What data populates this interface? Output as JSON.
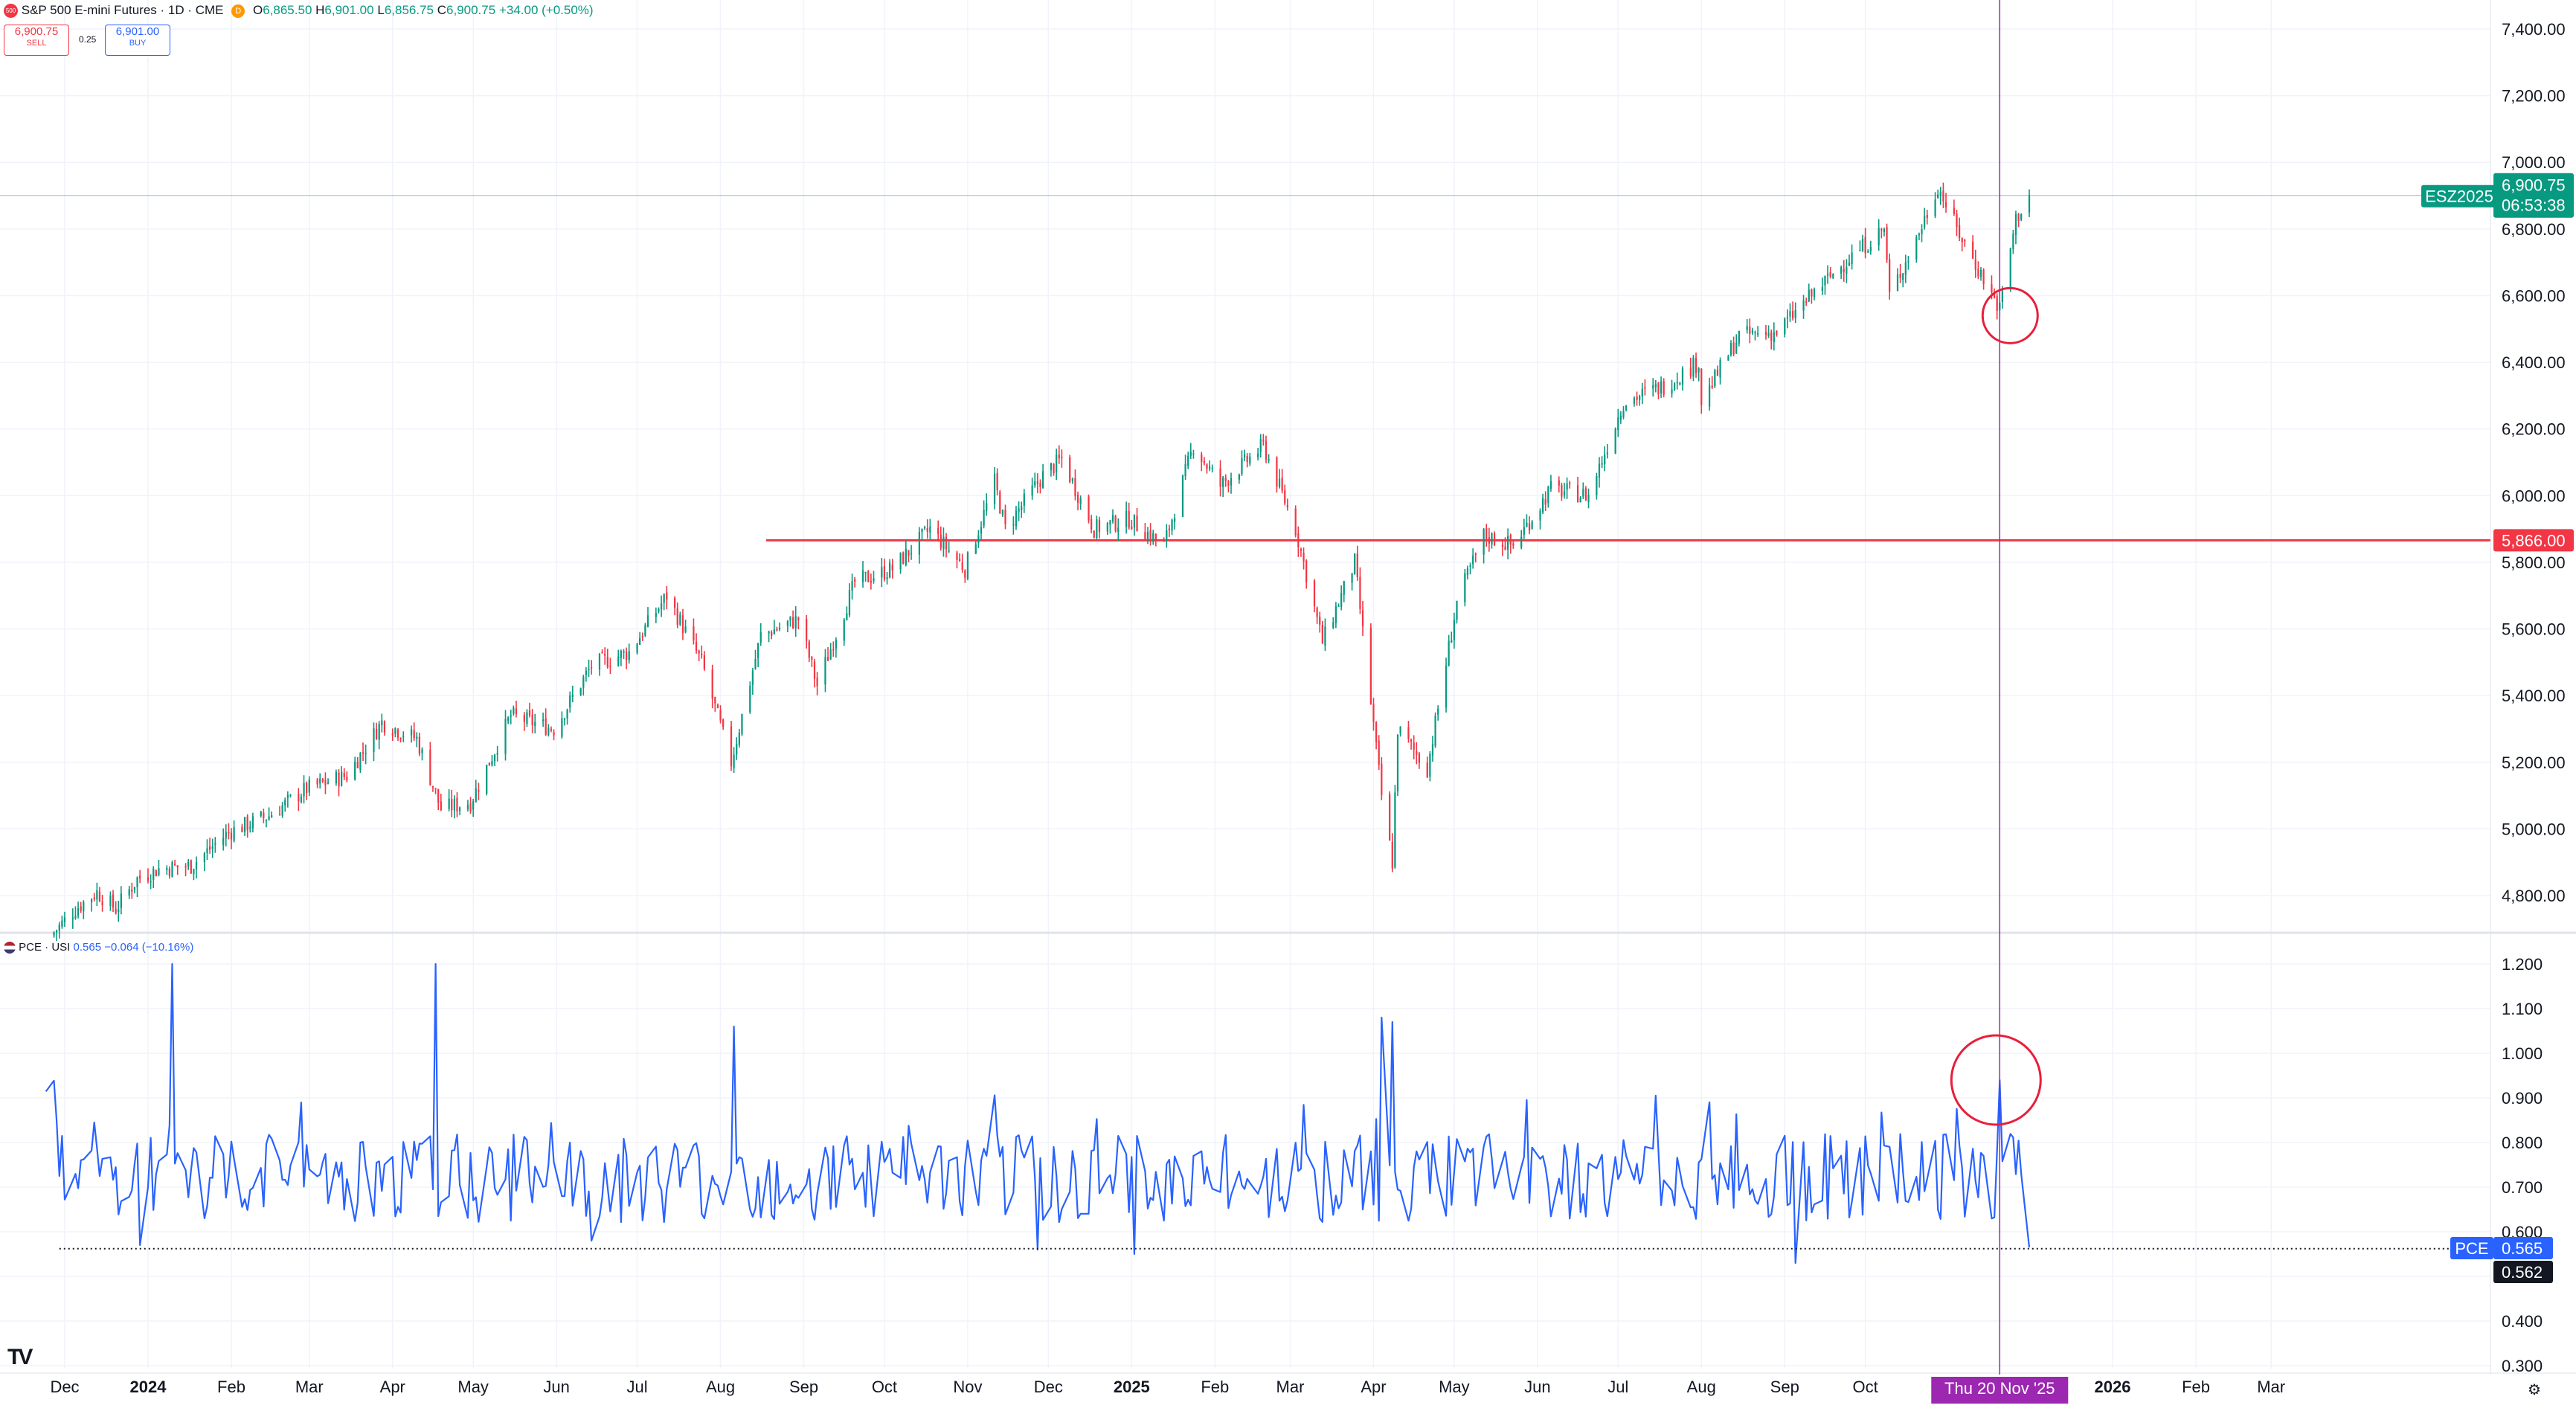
{
  "header": {
    "symbol_badge": "500",
    "instrument": "S&P 500 E-mini Futures · 1D · CME",
    "status_badge": "D",
    "open_label": "O",
    "open": "6,865.50",
    "high_label": "H",
    "high": "6,901.00",
    "low_label": "L",
    "low": "6,856.75",
    "close_label": "C",
    "close": "6,900.75",
    "change": "+34.00 (+0.50%)",
    "sell_price": "6,900.75",
    "sell_label": "SELL",
    "spread": "0.25",
    "buy_price": "6,901.00",
    "buy_label": "BUY"
  },
  "indicator_header": {
    "name": "PCE · USI",
    "value": "0.565",
    "change": "−0.064 (−10.16%)"
  },
  "price_tags": {
    "symbol": "ESZ2025",
    "last_price": "6,900.75",
    "countdown": "06:53:38",
    "hline_value": "5,866.00",
    "pce_label": "PCE",
    "pce_value": "0.565",
    "pce_line_value": "0.562"
  },
  "crosshair_label": "Thu 20 Nov '25",
  "colors": {
    "up": "#089981",
    "down": "#f23645",
    "pce_line": "#2962ff",
    "crosshair": "#9c27b0",
    "hline": "#f23645",
    "circle": "#e91e3c"
  },
  "chart_data": [
    {
      "type": "candlestick",
      "title": "S&P 500 E-mini Futures",
      "ylim": [
        4700,
        7420
      ],
      "y_ticks": [
        7400,
        7200,
        7000,
        6800,
        6600,
        6400,
        6200,
        6000,
        5800,
        5600,
        5400,
        5200,
        5000,
        4800
      ],
      "y_tick_labels": [
        "7,400.00",
        "7,200.00",
        "7,000.00",
        "6,800.00",
        "6,600.00",
        "6,400.00",
        "6,200.00",
        "6,000.00",
        "5,800.00",
        "5,600.00",
        "5,400.00",
        "5,200.00",
        "5,000.00",
        "4,800.00"
      ],
      "close_anchors": [
        [
          "2023-11-27",
          4690
        ],
        [
          "2023-12-05",
          4760
        ],
        [
          "2023-12-13",
          4810
        ],
        [
          "2023-12-20",
          4760
        ],
        [
          "2023-12-28",
          4850
        ],
        [
          "2024-01-05",
          4880
        ],
        [
          "2024-01-17",
          4890
        ],
        [
          "2024-01-31",
          4990
        ],
        [
          "2024-02-15",
          5040
        ],
        [
          "2024-02-29",
          5120
        ],
        [
          "2024-03-15",
          5160
        ],
        [
          "2024-03-28",
          5320
        ],
        [
          "2024-04-10",
          5270
        ],
        [
          "2024-04-19",
          5060
        ],
        [
          "2024-04-30",
          5080
        ],
        [
          "2024-05-15",
          5340
        ],
        [
          "2024-05-31",
          5300
        ],
        [
          "2024-06-14",
          5490
        ],
        [
          "2024-06-28",
          5530
        ],
        [
          "2024-07-12",
          5700
        ],
        [
          "2024-07-25",
          5500
        ],
        [
          "2024-08-05",
          5200
        ],
        [
          "2024-08-16",
          5580
        ],
        [
          "2024-08-30",
          5630
        ],
        [
          "2024-09-06",
          5430
        ],
        [
          "2024-09-20",
          5740
        ],
        [
          "2024-10-04",
          5780
        ],
        [
          "2024-10-18",
          5900
        ],
        [
          "2024-10-31",
          5780
        ],
        [
          "2024-11-11",
          6040
        ],
        [
          "2024-11-15",
          5900
        ],
        [
          "2024-11-29",
          6060
        ],
        [
          "2024-12-06",
          6110
        ],
        [
          "2024-12-18",
          5900
        ],
        [
          "2024-12-31",
          5930
        ],
        [
          "2025-01-13",
          5850
        ],
        [
          "2025-01-24",
          6150
        ],
        [
          "2025-02-03",
          6030
        ],
        [
          "2025-02-19",
          6150
        ],
        [
          "2025-03-03",
          5900
        ],
        [
          "2025-03-13",
          5560
        ],
        [
          "2025-03-25",
          5800
        ],
        [
          "2025-04-04",
          5100
        ],
        [
          "2025-04-08",
          4900
        ],
        [
          "2025-04-10",
          5300
        ],
        [
          "2025-04-21",
          5180
        ],
        [
          "2025-05-02",
          5680
        ],
        [
          "2025-05-12",
          5880
        ],
        [
          "2025-05-23",
          5850
        ],
        [
          "2025-06-06",
          6020
        ],
        [
          "2025-06-20",
          6000
        ],
        [
          "2025-07-03",
          6280
        ],
        [
          "2025-07-18",
          6330
        ],
        [
          "2025-07-31",
          6400
        ],
        [
          "2025-08-01",
          6280
        ],
        [
          "2025-08-15",
          6480
        ],
        [
          "2025-08-29",
          6490
        ],
        [
          "2025-09-12",
          6610
        ],
        [
          "2025-09-26",
          6720
        ],
        [
          "2025-10-08",
          6800
        ],
        [
          "2025-10-10",
          6600
        ],
        [
          "2025-10-20",
          6770
        ],
        [
          "2025-10-28",
          6930
        ],
        [
          "2025-11-04",
          6800
        ],
        [
          "2025-11-20",
          6560
        ],
        [
          "2025-11-26",
          6830
        ],
        [
          "2025-12-01",
          6900.75
        ]
      ]
    },
    {
      "type": "line",
      "series_name": "PCE",
      "ylim": [
        0.29,
        1.24
      ],
      "y_ticks": [
        1.2,
        1.1,
        1.0,
        0.9,
        0.8,
        0.7,
        0.6,
        0.5,
        0.4,
        0.3
      ],
      "y_tick_labels": [
        "1.200",
        "1.100",
        "1.000",
        "0.900",
        "0.800",
        "0.700",
        "0.600",
        "",
        "0.400",
        "0.300"
      ],
      "peaks": [
        [
          "2024-01-10",
          1.2
        ],
        [
          "2024-04-17",
          1.2
        ],
        [
          "2024-08-06",
          1.06
        ],
        [
          "2025-04-04",
          1.08
        ],
        [
          "2025-04-08",
          1.07
        ],
        [
          "2025-11-20",
          0.94
        ]
      ],
      "troughs": [
        [
          "2023-12-29",
          0.57
        ],
        [
          "2024-06-14",
          0.58
        ],
        [
          "2024-11-27",
          0.56
        ],
        [
          "2025-01-02",
          0.55
        ],
        [
          "2025-09-05",
          0.53
        ],
        [
          "2025-12-01",
          0.565
        ]
      ],
      "last_value": 0.565,
      "dotted_level": 0.562
    }
  ],
  "x_axis": {
    "ticks": [
      [
        "Dec",
        "2023-12-01"
      ],
      [
        "2024",
        "2024-01-01"
      ],
      [
        "Feb",
        "2024-02-01"
      ],
      [
        "Mar",
        "2024-03-01"
      ],
      [
        "Apr",
        "2024-04-01"
      ],
      [
        "May",
        "2024-05-01"
      ],
      [
        "Jun",
        "2024-06-01"
      ],
      [
        "Jul",
        "2024-07-01"
      ],
      [
        "Aug",
        "2024-08-01"
      ],
      [
        "Sep",
        "2024-09-01"
      ],
      [
        "Oct",
        "2024-10-01"
      ],
      [
        "Nov",
        "2024-11-01"
      ],
      [
        "Dec",
        "2024-12-01"
      ],
      [
        "2025",
        "2025-01-01"
      ],
      [
        "Feb",
        "2025-02-01"
      ],
      [
        "Mar",
        "2025-03-01"
      ],
      [
        "Apr",
        "2025-04-01"
      ],
      [
        "May",
        "2025-05-01"
      ],
      [
        "Jun",
        "2025-06-01"
      ],
      [
        "Jul",
        "2025-07-01"
      ],
      [
        "Aug",
        "2025-08-01"
      ],
      [
        "Sep",
        "2025-09-01"
      ],
      [
        "Oct",
        "2025-10-01"
      ],
      [
        "2026",
        "2026-01-01"
      ],
      [
        "Feb",
        "2026-02-01"
      ],
      [
        "Mar",
        "2026-03-01"
      ]
    ],
    "bold_labels": [
      "2024",
      "2025",
      "2026"
    ],
    "crosshair_date": "2025-11-20",
    "hline_start_date": "2024-08-18",
    "last_bar_date": "2025-12-01"
  },
  "logo": "TV",
  "settings_icon": "gear-icon"
}
